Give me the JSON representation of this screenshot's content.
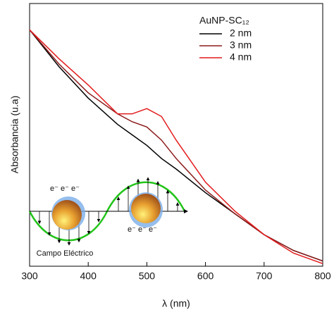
{
  "chart_data": {
    "type": "line",
    "xlabel": "λ (nm)",
    "ylabel": "Absorbancia (u.a)",
    "legend_title": "AuNP-SC₁₂",
    "x": [
      300,
      350,
      400,
      450,
      475,
      500,
      525,
      550,
      600,
      650,
      700,
      750,
      800
    ],
    "series": [
      {
        "name": "2 nm",
        "color": "#000000",
        "values": [
          0.9,
          0.76,
          0.64,
          0.54,
          0.5,
          0.46,
          0.41,
          0.37,
          0.28,
          0.2,
          0.12,
          0.06,
          0.02
        ]
      },
      {
        "name": "3 nm",
        "color": "#8b1a1a",
        "values": [
          0.9,
          0.77,
          0.66,
          0.58,
          0.55,
          0.53,
          0.48,
          0.41,
          0.29,
          0.2,
          0.12,
          0.06,
          0.02
        ]
      },
      {
        "name": "4 nm",
        "color": "#e31a1c",
        "values": [
          0.9,
          0.79,
          0.69,
          0.58,
          0.58,
          0.6,
          0.57,
          0.48,
          0.32,
          0.21,
          0.12,
          0.05,
          0.01
        ]
      }
    ],
    "xlim": [
      300,
      800
    ],
    "xticks": [
      300,
      400,
      500,
      600,
      700,
      800
    ],
    "ylim": [
      0,
      1
    ],
    "annotations": [
      "e⁻ e⁻ e⁻",
      "e⁻ e⁻ e⁻",
      "Campo Eléctrico"
    ]
  }
}
